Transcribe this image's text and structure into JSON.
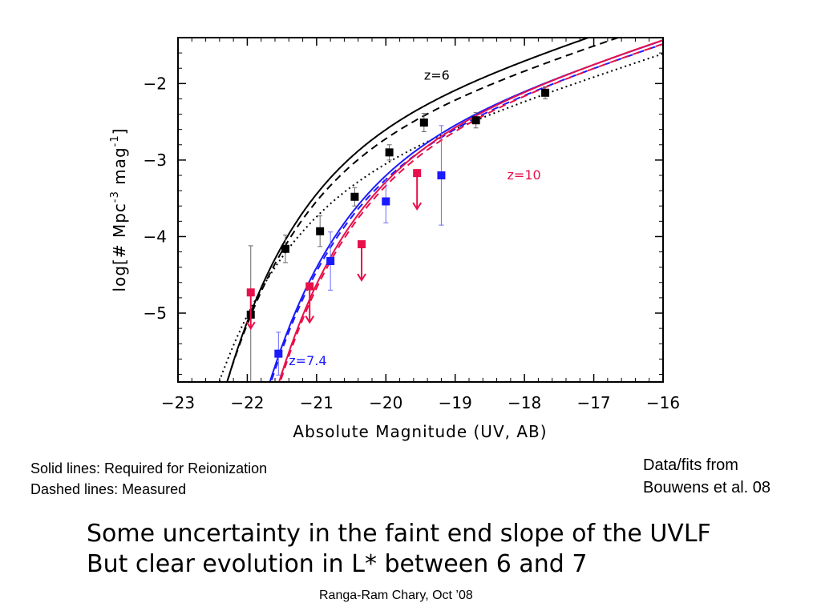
{
  "chart_data": {
    "type": "scatter",
    "title": "",
    "xlabel": "Absolute Magnitude (UV, AB)",
    "ylabel_parts": {
      "prefix": "log[# Mpc",
      "sup1": "-3",
      "mid": " mag",
      "sup2": "-1",
      "suffix": "]"
    },
    "xlim": [
      -23,
      -16
    ],
    "ylim": [
      -5.9,
      -1.4
    ],
    "xticks": [
      -23,
      -22,
      -21,
      -20,
      -19,
      -18,
      -17,
      -16
    ],
    "xtick_labels": [
      "−23",
      "−22",
      "−21",
      "−20",
      "−19",
      "−18",
      "−17",
      "−16"
    ],
    "yticks": [
      -5,
      -4,
      -3,
      -2
    ],
    "ytick_labels": [
      "−5",
      "−4",
      "−3",
      "−2"
    ],
    "grid": false,
    "colors": {
      "z6": "#000000",
      "z7": "#1a1aff",
      "z10": "#e8104a"
    },
    "annotations": [
      {
        "text": "z=6",
        "x": -19.45,
        "y": -1.95,
        "color": "#000000"
      },
      {
        "text": "z=10",
        "x": -18.25,
        "y": -3.25,
        "color": "#e8104a"
      },
      {
        "text": "z=7.4",
        "x": -21.4,
        "y": -5.68,
        "color": "#1a1aff"
      }
    ],
    "curves": [
      {
        "color": "#000000",
        "style": "solid",
        "Mstar": -20.2,
        "logphi": -2.3,
        "alpha": -1.74
      },
      {
        "color": "#000000",
        "style": "dashed",
        "Mstar": -20.25,
        "logphi": -2.45,
        "alpha": -1.74
      },
      {
        "color": "#000000",
        "style": "dotted",
        "Mstar": -20.55,
        "logphi": -2.95,
        "alpha": -1.74
      },
      {
        "color": "#1a1aff",
        "style": "solid",
        "Mstar": -19.65,
        "logphi": -2.5,
        "alpha": -1.74
      },
      {
        "color": "#1a1aff",
        "style": "dashed",
        "Mstar": -19.65,
        "logphi": -2.55,
        "alpha": -1.74
      },
      {
        "color": "#e8104a",
        "style": "solid",
        "Mstar": -19.5,
        "logphi": -2.45,
        "alpha": -1.74
      },
      {
        "color": "#e8104a",
        "style": "dashed",
        "Mstar": -19.5,
        "logphi": -2.5,
        "alpha": -1.74
      }
    ],
    "points_z6": [
      {
        "x": -21.95,
        "y": -5.02,
        "err": 0.9
      },
      {
        "x": -21.45,
        "y": -4.16,
        "err": 0.18
      },
      {
        "x": -20.95,
        "y": -3.93,
        "err": 0.2
      },
      {
        "x": -20.45,
        "y": -3.48,
        "err": 0.12
      },
      {
        "x": -19.95,
        "y": -2.9,
        "err": 0.1
      },
      {
        "x": -19.45,
        "y": -2.51,
        "err": 0.12
      },
      {
        "x": -18.7,
        "y": -2.48,
        "err": 0.1
      },
      {
        "x": -17.7,
        "y": -2.12,
        "err": 0.08
      }
    ],
    "points_z7": [
      {
        "x": -21.55,
        "y": -5.53,
        "err": 0.28
      },
      {
        "x": -20.8,
        "y": -4.32,
        "err": 0.38
      },
      {
        "x": -20.0,
        "y": -3.54,
        "err": 0.28
      },
      {
        "x": -19.2,
        "y": -3.2,
        "err": 0.65
      }
    ],
    "upper_limits_z10": [
      {
        "x": -21.95,
        "y": -4.73
      },
      {
        "x": -21.1,
        "y": -4.65
      },
      {
        "x": -20.35,
        "y": -4.1
      },
      {
        "x": -19.55,
        "y": -3.17
      }
    ]
  },
  "notes": {
    "line1": "Solid lines: Required for Reionization",
    "line2": "Dashed lines: Measured",
    "source1": "Data/fits from",
    "source2": "Bouwens et al. 08"
  },
  "headline": {
    "line1": "Some uncertainty in the faint end slope of the UVLF",
    "line2": "But clear evolution in L* between 6 and 7"
  },
  "credit": "Ranga-Ram Chary, Oct ’08"
}
